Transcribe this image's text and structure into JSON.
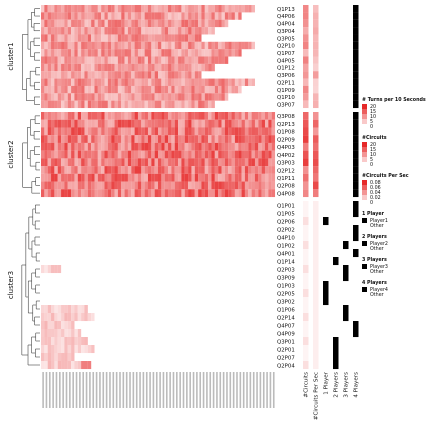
{
  "chart_data": {
    "type": "heatmap",
    "title": "",
    "clusters": [
      {
        "name": "cluster1",
        "rows": [
          "Q1P13",
          "Q4P06",
          "Q4P04",
          "Q3P04",
          "Q3P05",
          "Q2P10",
          "Q1P07",
          "Q4P05",
          "Q1P12",
          "Q3P06",
          "Q2P11",
          "Q1P09",
          "Q1P10",
          "Q3P07"
        ]
      },
      {
        "name": "cluster2",
        "rows": [
          "Q3P08",
          "Q2P13",
          "Q1P08",
          "Q2P09",
          "Q4P03",
          "Q4P02",
          "Q3P03",
          "Q2P12",
          "Q1P11",
          "Q2P08",
          "Q4P08"
        ]
      },
      {
        "name": "cluster3",
        "rows": [
          "Q1P01",
          "Q1P05",
          "Q2P06",
          "Q2P02",
          "Q4P10",
          "Q1P02",
          "Q4P01",
          "Q1P14",
          "Q2P03",
          "Q3P09",
          "Q1P03",
          "Q2P05",
          "Q3P02",
          "Q1P06",
          "Q2P14",
          "Q4P07",
          "Q4P09",
          "Q3P01",
          "Q2P01",
          "Q2P07",
          "Q2P04"
        ]
      }
    ],
    "annotation_columns": [
      "#Circuits",
      "#Circuits Per Sec",
      "1 Player",
      "2 Players",
      "3 Players",
      "4 Players"
    ],
    "player_rows": {
      "1 Player": [
        "Q2P06",
        "Q1P03",
        "Q2P05",
        "Q3P02"
      ],
      "2 Players": [
        "Q1P14",
        "Q3P01",
        "Q2P01",
        "Q2P07",
        "Q2P04"
      ],
      "3 Players": [
        "Q1P02",
        "Q2P03",
        "Q3P09",
        "Q1P06",
        "Q2P14"
      ],
      "4 Players": [
        "Q1P13",
        "Q4P06",
        "Q4P04",
        "Q3P04",
        "Q3P05",
        "Q2P10",
        "Q1P07",
        "Q4P05",
        "Q1P12",
        "Q3P06",
        "Q2P11",
        "Q1P09",
        "Q1P10",
        "Q3P07",
        "Q3P08",
        "Q2P13",
        "Q1P08",
        "Q2P09",
        "Q4P03",
        "Q4P02",
        "Q3P03",
        "Q2P12",
        "Q1P11",
        "Q2P08",
        "Q4P08",
        "Q1P01",
        "Q1P05",
        "Q2P02",
        "Q4P10",
        "Q4P01",
        "Q4P07",
        "Q4P09"
      ]
    },
    "legends": [
      {
        "title": "# Turns per 10 Seconds",
        "type": "gradient",
        "ticks": [
          "20",
          "15",
          "10",
          "5",
          "0"
        ],
        "high_color": "#e83030",
        "low_color": "#ffffff"
      },
      {
        "title": "#Circuits",
        "type": "gradient",
        "ticks": [
          "20",
          "15",
          "10",
          "5",
          "0"
        ],
        "high_color": "#e83030",
        "low_color": "#ffffff"
      },
      {
        "title": "#Circuits Per Sec",
        "type": "gradient",
        "ticks": [
          "0.08",
          "0.06",
          "0.04",
          "0.02",
          "0"
        ],
        "high_color": "#e83030",
        "low_color": "#ffffff"
      },
      {
        "title": "1 Player",
        "type": "discrete",
        "items": [
          "Player1",
          "Other"
        ]
      },
      {
        "title": "2 Players",
        "type": "discrete",
        "items": [
          "Player2",
          "Other"
        ]
      },
      {
        "title": "3 Players",
        "type": "discrete",
        "items": [
          "Player3",
          "Other"
        ]
      },
      {
        "title": "4 Players",
        "type": "discrete",
        "items": [
          "Player4",
          "Other"
        ]
      }
    ],
    "grid": false
  }
}
